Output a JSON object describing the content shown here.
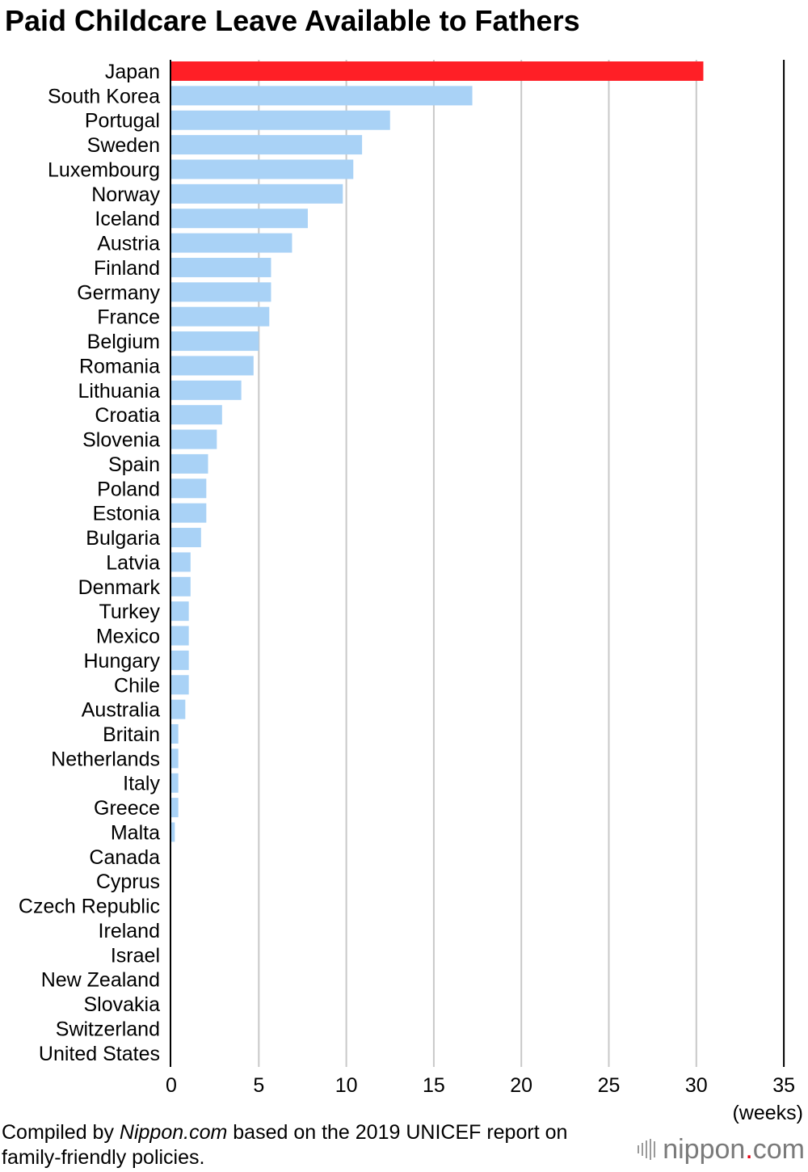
{
  "chart_data": {
    "type": "bar",
    "orientation": "horizontal",
    "title": "Paid Childcare Leave Available to Fathers",
    "xlabel": "(weeks)",
    "xlim": [
      0,
      35
    ],
    "xticks": [
      "0",
      "5",
      "10",
      "15",
      "20",
      "25",
      "30",
      "35"
    ],
    "grid": true,
    "categories": [
      "Japan",
      "South Korea",
      "Portugal",
      "Sweden",
      "Luxembourg",
      "Norway",
      "Iceland",
      "Austria",
      "Finland",
      "Germany",
      "France",
      "Belgium",
      "Romania",
      "Lithuania",
      "Croatia",
      "Slovenia",
      "Spain",
      "Poland",
      "Estonia",
      "Bulgaria",
      "Latvia",
      "Denmark",
      "Turkey",
      "Mexico",
      "Hungary",
      "Chile",
      "Australia",
      "Britain",
      "Netherlands",
      "Italy",
      "Greece",
      "Malta",
      "Canada",
      "Cyprus",
      "Czech Republic",
      "Ireland",
      "Israel",
      "New Zealand",
      "Slovakia",
      "Switzerland",
      "United States"
    ],
    "values": [
      30.4,
      17.2,
      12.5,
      10.9,
      10.4,
      9.8,
      7.8,
      6.9,
      5.7,
      5.7,
      5.6,
      5.0,
      4.7,
      4.0,
      2.9,
      2.6,
      2.1,
      2.0,
      2.0,
      1.7,
      1.1,
      1.1,
      1.0,
      1.0,
      1.0,
      1.0,
      0.8,
      0.4,
      0.4,
      0.4,
      0.4,
      0.2,
      0,
      0,
      0,
      0,
      0,
      0,
      0,
      0,
      0
    ],
    "colors": {
      "highlight": "#ff1f26",
      "default": "#a9d2f6",
      "grid": "#c8c8c8",
      "axis": "#000000"
    },
    "highlight_category": "Japan"
  },
  "footnote": {
    "prefix": "Compiled by ",
    "source": "Nippon.com",
    "suffix": " based on the 2019 UNICEF report on family-friendly policies."
  },
  "logo": {
    "name": "nippon",
    "dot": ".",
    "suffix": "com"
  }
}
